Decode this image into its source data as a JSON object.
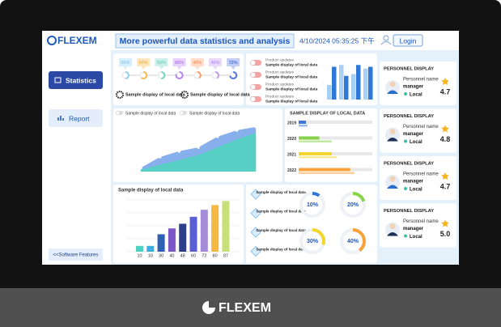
{
  "header": {
    "logo": "FLEXEM",
    "title": "More powerful data statistics and analysis",
    "datetime": "4/10/2024 05:35:25 下午",
    "login": "Login"
  },
  "sidebar": {
    "items": [
      "Statistics",
      "Report"
    ],
    "footer": "<<Software Features"
  },
  "progress": {
    "values": [
      50,
      60,
      50,
      80,
      40,
      40,
      72
    ],
    "value_labels": [
      "50%",
      "60%",
      "50%",
      "80%",
      "40%",
      "40%",
      "72%"
    ],
    "colors": [
      "#8fcff3",
      "#f5b84a",
      "#6fd6c0",
      "#b982ee",
      "#ff9a66",
      "#c096ee",
      "#4f73dc"
    ],
    "items": [
      "Sample display of local data",
      "Sample display of local data"
    ]
  },
  "updates": {
    "items": [
      {
        "title": "Product updates",
        "text": "Sample display of local data"
      },
      {
        "title": "Product updates",
        "text": "Sample display of local data"
      },
      {
        "title": "Product updates",
        "text": "Sample display of local data"
      },
      {
        "title": "Product updates",
        "text": "Sample display of local data"
      }
    ],
    "series": [
      {
        "color": "#a9cff2",
        "values": [
          40,
          95,
          70,
          85
        ]
      },
      {
        "color": "#2f78d6",
        "values": [
          90,
          65,
          95,
          90
        ]
      }
    ]
  },
  "area_chart": {
    "legend": [
      "Sample display of local data",
      "Sample display of local data"
    ],
    "series": [
      {
        "color": "#7aa6ea",
        "values": [
          8,
          30,
          42,
          50,
          72,
          85,
          92
        ]
      },
      {
        "color": "#52d3c0",
        "values": [
          4,
          14,
          24,
          34,
          50,
          66,
          80
        ]
      }
    ]
  },
  "year_bars": {
    "title": "SAMPLE DISPLAY OF LOCAL DATA",
    "categories": [
      "2019",
      "2020",
      "2021",
      "2022"
    ],
    "colors": [
      "#3a78d8",
      "#86d24a",
      "#f2d530",
      "#f5a33a"
    ],
    "series": [
      {
        "values": [
          10,
          28,
          45,
          70
        ]
      },
      {
        "values": [
          12,
          45,
          52,
          76
        ]
      }
    ]
  },
  "column_chart": {
    "title": "Sample display of local data",
    "values": [
      10,
      10,
      30,
      40,
      48,
      60,
      72,
      80,
      87
    ],
    "colors": [
      "#4fd1c5",
      "#39aee0",
      "#2f62b5",
      "#7a56c7",
      "#2b3f8c",
      "#5a5fd6",
      "#a58ad9",
      "#f5b942",
      "#c9e07a"
    ]
  },
  "gauges": {
    "items": [
      "Sample display of local data",
      "Sample display of local data",
      "Sample display of local data",
      "Sample display of local data"
    ],
    "values": [
      10,
      20,
      30,
      40
    ],
    "value_labels": [
      "10%",
      "20%",
      "30%",
      "40%"
    ],
    "colors": [
      "#2f78d6",
      "#8ad44a",
      "#f2d530",
      "#f5a33a"
    ]
  },
  "personnel": [
    {
      "title": "PERSONNEL DISPLAY",
      "name": "Personnel name",
      "role": "manager",
      "location": "Local",
      "rating": 4.7
    },
    {
      "title": "PERSONNEL DISPLAY",
      "name": "Personnel name",
      "role": "manager",
      "location": "Local",
      "rating": 4.8
    },
    {
      "title": "PERSONNEL DISPLAY",
      "name": "Personnel name",
      "role": "manager",
      "location": "Local",
      "rating": 4.7
    },
    {
      "title": "PERSONNEL DISPLAY",
      "name": "Personnel name",
      "role": "manager",
      "location": "Local",
      "rating": 5.0
    }
  ],
  "footer": {
    "logo": "FLEXEM"
  }
}
